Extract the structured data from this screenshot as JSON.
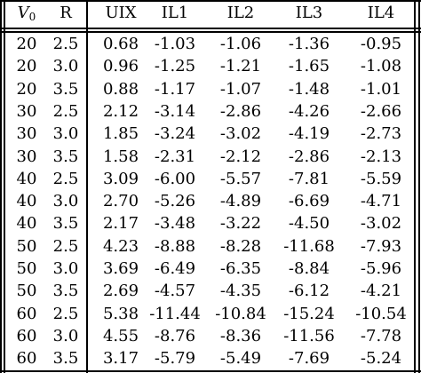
{
  "table": {
    "headers": [
      {
        "key": "v0",
        "main": "V",
        "sub": "0"
      },
      {
        "key": "r",
        "main": "R"
      },
      {
        "key": "uix",
        "main": "UIX"
      },
      {
        "key": "il1",
        "main": "IL1"
      },
      {
        "key": "il2",
        "main": "IL2"
      },
      {
        "key": "il3",
        "main": "IL3"
      },
      {
        "key": "il4",
        "main": "IL4"
      }
    ],
    "rows": [
      [
        "20",
        "2.5",
        "0.68",
        "-1.03",
        "-1.06",
        "-1.36",
        "-0.95"
      ],
      [
        "20",
        "3.0",
        "0.96",
        "-1.25",
        "-1.21",
        "-1.65",
        "-1.08"
      ],
      [
        "20",
        "3.5",
        "0.88",
        "-1.17",
        "-1.07",
        "-1.48",
        "-1.01"
      ],
      [
        "30",
        "2.5",
        "2.12",
        "-3.14",
        "-2.86",
        "-4.26",
        "-2.66"
      ],
      [
        "30",
        "3.0",
        "1.85",
        "-3.24",
        "-3.02",
        "-4.19",
        "-2.73"
      ],
      [
        "30",
        "3.5",
        "1.58",
        "-2.31",
        "-2.12",
        "-2.86",
        "-2.13"
      ],
      [
        "40",
        "2.5",
        "3.09",
        "-6.00",
        "-5.57",
        "-7.81",
        "-5.59"
      ],
      [
        "40",
        "3.0",
        "2.70",
        "-5.26",
        "-4.89",
        "-6.69",
        "-4.71"
      ],
      [
        "40",
        "3.5",
        "2.17",
        "-3.48",
        "-3.22",
        "-4.50",
        "-3.02"
      ],
      [
        "50",
        "2.5",
        "4.23",
        "-8.88",
        "-8.28",
        "-11.68",
        "-7.93"
      ],
      [
        "50",
        "3.0",
        "3.69",
        "-6.49",
        "-6.35",
        "-8.84",
        "-5.96"
      ],
      [
        "50",
        "3.5",
        "2.69",
        "-4.57",
        "-4.35",
        "-6.12",
        "-4.21"
      ],
      [
        "60",
        "2.5",
        "5.38",
        "-11.44",
        "-10.84",
        "-15.24",
        "-10.54"
      ],
      [
        "60",
        "3.0",
        "4.55",
        "-8.76",
        "-8.36",
        "-11.56",
        "-7.78"
      ],
      [
        "60",
        "3.5",
        "3.17",
        "-5.79",
        "-5.49",
        "-7.69",
        "-5.24"
      ]
    ]
  }
}
